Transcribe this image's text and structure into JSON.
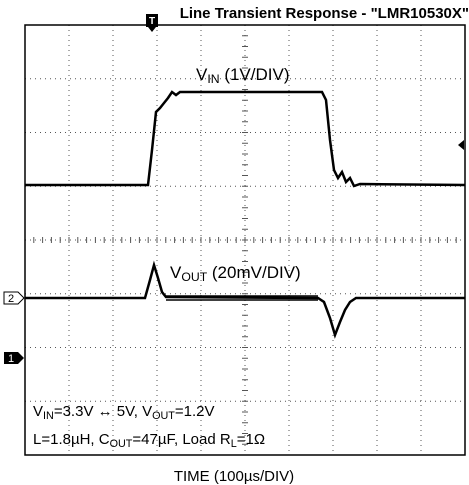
{
  "title": "Line Transient Response - \"LMR10530X\"",
  "markers": {
    "trigger": "T",
    "ch2": "2",
    "ch1": "1"
  },
  "traces": [
    {
      "segments": [
        {
          "t": "V"
        },
        {
          "t": "IN",
          "sub": true
        },
        {
          "t": " (1V/DIV)"
        }
      ]
    },
    {
      "segments": [
        {
          "t": "V"
        },
        {
          "t": "OUT",
          "sub": true
        },
        {
          "t": " (20mV/DIV)"
        }
      ]
    }
  ],
  "annotations": [
    {
      "segments": [
        {
          "t": "V"
        },
        {
          "t": "IN",
          "sub": true
        },
        {
          "t": "=3.3V ↔ 5V, V"
        },
        {
          "t": "OUT",
          "sub": true
        },
        {
          "t": "=1.2V"
        }
      ]
    },
    {
      "segments": [
        {
          "t": "L=1.8µH, C"
        },
        {
          "t": "OUT",
          "sub": true
        },
        {
          "t": "=47µF, Load R"
        },
        {
          "t": "L",
          "sub": true
        },
        {
          "t": "=1Ω"
        }
      ]
    }
  ],
  "x_label": "TIME (100µs/DIV)"
}
